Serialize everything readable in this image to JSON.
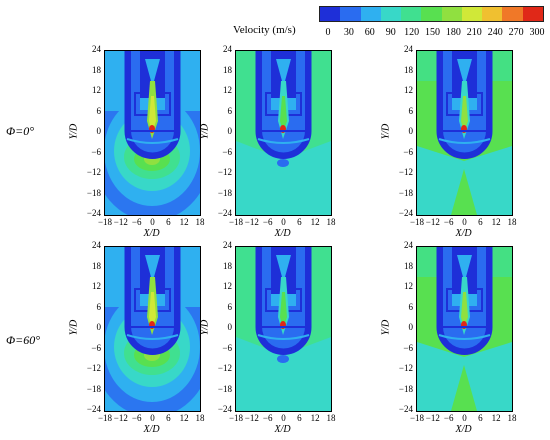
{
  "colorbar": {
    "title": "Velocity (m/s)",
    "ticks": [
      "0",
      "30",
      "60",
      "90",
      "120",
      "150",
      "180",
      "210",
      "240",
      "270",
      "300"
    ],
    "colors": [
      "#1e2fd8",
      "#2a6cf0",
      "#2fb0f0",
      "#38d8c8",
      "#40e090",
      "#58e050",
      "#90e040",
      "#d0e838",
      "#f0c030",
      "#f07828",
      "#e02818"
    ]
  },
  "rows": [
    {
      "label": "Φ=0°"
    },
    {
      "label": "Φ=60°"
    }
  ],
  "axes": {
    "xlabel": "X/D",
    "ylabel": "Y/D",
    "xticks": [
      "−18",
      "−12",
      "−6",
      "0",
      "6",
      "12",
      "18"
    ],
    "yticks": [
      "24",
      "18",
      "12",
      "6",
      "0",
      "−6",
      "−12",
      "−18",
      "−24"
    ]
  }
}
